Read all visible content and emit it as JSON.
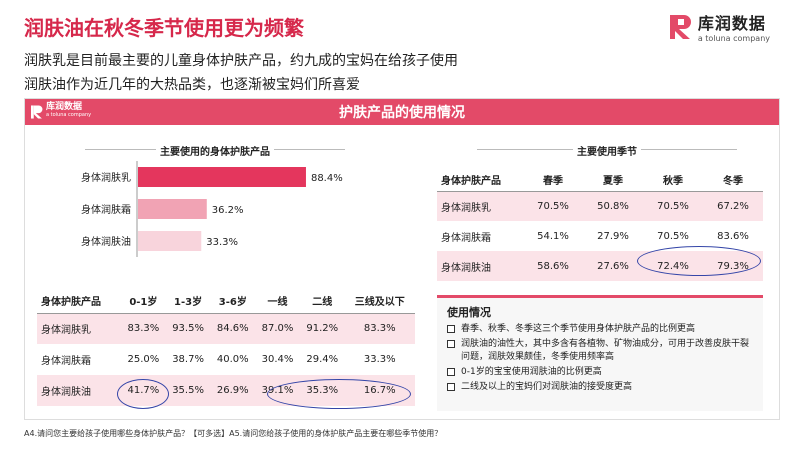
{
  "header": {
    "title": "润肤油在秋冬季节使用更为频繁",
    "subtitle_lines": [
      "润肤乳是目前最主要的儿童身体护肤产品，约九成的宝妈在给孩子使用",
      "润肤油作为近几年的大热品类，也逐渐被宝妈们所喜爱"
    ]
  },
  "logo": {
    "name": "库润数据",
    "sub": "a toluna company",
    "brand_color": "#e34a68"
  },
  "panel": {
    "title": "护肤产品的使用情况",
    "logo_name": "库润数据",
    "logo_sub": "a toluna company",
    "accent": "#e34a68"
  },
  "chart_data": [
    {
      "type": "bar",
      "orientation": "horizontal",
      "title": "主要使用的身体护肤产品",
      "categories": [
        "身体润肤乳",
        "身体润肤霜",
        "身体润肤油"
      ],
      "values": [
        88.4,
        36.2,
        33.3
      ],
      "value_labels": [
        "88.4%",
        "36.2%",
        "33.3%"
      ],
      "colors": [
        "#e4365d",
        "#f1a3b4",
        "#f8d4dc"
      ],
      "xlim": [
        0,
        100
      ]
    },
    {
      "type": "table",
      "columns": [
        "身体护肤产品",
        "0-1岁",
        "1-3岁",
        "3-6岁",
        "一线",
        "二线",
        "三线及以下"
      ],
      "rows": [
        [
          "身体润肤乳",
          "83.3%",
          "93.5%",
          "84.6%",
          "87.0%",
          "91.2%",
          "83.3%"
        ],
        [
          "身体润肤霜",
          "25.0%",
          "38.7%",
          "40.0%",
          "30.4%",
          "29.4%",
          "33.3%"
        ],
        [
          "身体润肤油",
          "41.7%",
          "35.5%",
          "26.9%",
          "39.1%",
          "35.3%",
          "16.7%"
        ]
      ]
    },
    {
      "type": "table",
      "title": "主要使用季节",
      "columns": [
        "身体护肤产品",
        "春季",
        "夏季",
        "秋季",
        "冬季"
      ],
      "rows": [
        [
          "身体润肤乳",
          "70.5%",
          "50.8%",
          "70.5%",
          "67.2%"
        ],
        [
          "身体润肤霜",
          "54.1%",
          "27.9%",
          "70.5%",
          "83.6%"
        ],
        [
          "身体润肤油",
          "58.6%",
          "27.6%",
          "72.4%",
          "79.3%"
        ]
      ]
    }
  ],
  "usage": {
    "title": "使用情况",
    "items": [
      "春季、秋季、冬季这三个季节使用身体护肤产品的比例更高",
      "润肤油的油性大，其中多含有各植物、矿物油成分，可用于改善皮肤干裂问题，润肤效果颇佳，冬季使用频率高",
      "0-1岁的宝宝使用润肤油的比例更高",
      "二线及以上的宝妈们对润肤油的接受度更高"
    ]
  },
  "footnote": "A4.请问您主要给孩子使用哪些身体护肤产品？【可多选】A5.请问您给孩子使用的身体护肤产品主要在哪些季节使用？"
}
